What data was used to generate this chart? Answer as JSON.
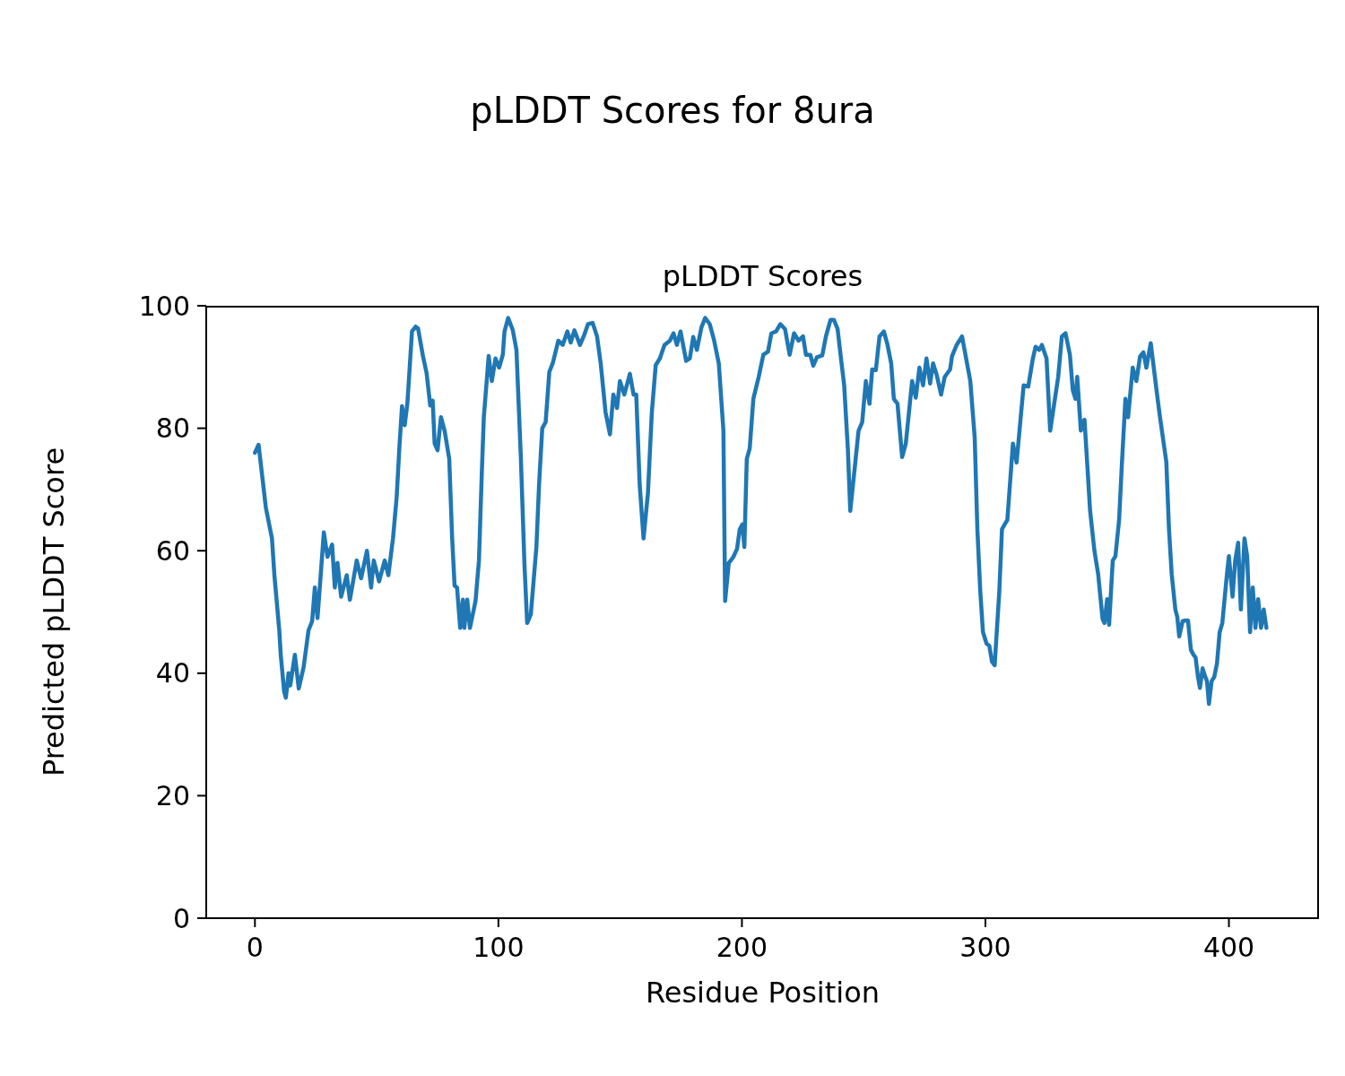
{
  "chart_data": {
    "type": "line",
    "title": "pLDDT Scores for 8ura",
    "subtitle": "pLDDT Scores",
    "xlabel": "Residue Position",
    "ylabel": "Predicted pLDDT Score",
    "xlim": [
      -20,
      437
    ],
    "xticks": [
      0,
      100,
      200,
      300,
      400
    ],
    "ylim": [
      0,
      100
    ],
    "yticks": [
      0,
      20,
      40,
      60,
      80,
      100
    ],
    "marker": "none",
    "line_style": "solid",
    "series": [
      {
        "color": "#1f77b4",
        "x": [
          0,
          1.5,
          4.5,
          7,
          8,
          10,
          10.6,
          12,
          12.7,
          13.8,
          14.5,
          16.4,
          18,
          20,
          22,
          23.5,
          24.6,
          25.7,
          28.3,
          29.8,
          31.7,
          32.8,
          33.9,
          35.4,
          37.7,
          39,
          41.8,
          43.6,
          46,
          47.7,
          48.8,
          51,
          53.3,
          54.8,
          56.7,
          58.2,
          59.3,
          60.4,
          61.5,
          62.6,
          64.5,
          66,
          67,
          69,
          70.5,
          72,
          73,
          73.8,
          75,
          76.4,
          77.9,
          79.8,
          81,
          82,
          83,
          84.3,
          85.4,
          86,
          87.2,
          88.3,
          90.6,
          92,
          93.2,
          94,
          96,
          97.3,
          98.8,
          100.3,
          101.8,
          102.5,
          104,
          105.9,
          107.4,
          109.2,
          110.7,
          111.8,
          113.3,
          115.6,
          116.7,
          118,
          119.4,
          120.9,
          122.3,
          124.6,
          126.4,
          128.3,
          129.7,
          131.2,
          133.5,
          135,
          136.8,
          138.7,
          140.5,
          142,
          144,
          145.8,
          147.2,
          148.7,
          149.9,
          151.7,
          154,
          155.5,
          156.6,
          158,
          159.6,
          161.4,
          163,
          164.6,
          166.3,
          168.2,
          170.4,
          171.9,
          173.3,
          174.8,
          177.1,
          178.6,
          180,
          181.5,
          183.4,
          184.9,
          186.8,
          188.6,
          190.5,
          192.4,
          193.1,
          194.6,
          196.5,
          198,
          199.1,
          200.2,
          201,
          202,
          203.2,
          204.7,
          206.9,
          208.8,
          210.7,
          212.1,
          214,
          215.8,
          217.7,
          219.6,
          221.4,
          223.3,
          225.1,
          226.3,
          228.1,
          229.3,
          230.8,
          233,
          234.5,
          236.4,
          237.8,
          239.3,
          240.8,
          242,
          243.5,
          244.5,
          246.4,
          247.9,
          249.4,
          250.9,
          252.4,
          253.5,
          255,
          256.5,
          258.3,
          259.8,
          261.3,
          262.4,
          263.9,
          265.8,
          267.3,
          269.9,
          271.4,
          272.9,
          274.4,
          275.8,
          277.3,
          278.5,
          280,
          281.8,
          283.3,
          285.5,
          286.3,
          288.2,
          290.4,
          293.8,
          295.6,
          296.7,
          297.9,
          299,
          300.5,
          301.6,
          302.7,
          303.8,
          305.7,
          306.8,
          307.9,
          309,
          311.3,
          312.8,
          315.7,
          317.6,
          319.5,
          320.6,
          322.1,
          323.2,
          325.1,
          326.6,
          329.9,
          331.4,
          332.9,
          334.7,
          335.9,
          337,
          337.7,
          339.2,
          340.7,
          343,
          344.8,
          346.3,
          348.1,
          348.9,
          350,
          350.8,
          352.3,
          353.4,
          354.9,
          356,
          357.5,
          358.6,
          360.5,
          362,
          363.5,
          364.9,
          366.1,
          367.9,
          370.5,
          371.7,
          374.3,
          375.4,
          376.5,
          378,
          378.8,
          379.6,
          381,
          382.1,
          383.2,
          384.4,
          385.5,
          386.3,
          387.3,
          388.1,
          389.2,
          390.3,
          391,
          391.8,
          392.9,
          394,
          395.1,
          396.2,
          397.3,
          399.2,
          400,
          401.5,
          402.6,
          403.8,
          404.9,
          406.4,
          407.5,
          408.7,
          409.8,
          410.9,
          412,
          413.2,
          414.3,
          415.4
        ],
        "values": [
          76,
          77.3,
          67,
          62,
          56,
          47,
          43,
          37,
          36,
          40,
          38,
          43,
          37.5,
          41,
          47,
          48.5,
          54,
          49,
          63,
          59,
          61,
          54,
          58,
          52.5,
          56,
          52,
          58.4,
          55.5,
          60,
          54,
          58.4,
          55,
          58.4,
          56,
          62,
          68.7,
          76.7,
          83.6,
          80.5,
          84,
          95.8,
          96.6,
          96.3,
          91.8,
          89,
          83.7,
          84.5,
          77.5,
          76.4,
          81.8,
          79.6,
          75,
          62,
          54.3,
          54,
          47.4,
          52,
          47.4,
          52,
          47.4,
          51.8,
          58.4,
          73,
          81.8,
          91.8,
          87.7,
          91.4,
          89.9,
          92,
          95.8,
          98,
          96,
          92.8,
          75.3,
          57.7,
          48.2,
          49.6,
          60.6,
          70.9,
          80,
          81,
          89.2,
          90.6,
          94.3,
          93.6,
          95.8,
          94,
          96,
          93.6,
          95,
          97,
          97.2,
          95,
          90.6,
          82.6,
          79,
          85.5,
          83.3,
          87.7,
          85.5,
          88.9,
          85.5,
          85.5,
          70.9,
          62,
          69.4,
          82.6,
          90.3,
          91.4,
          93.6,
          94.3,
          95.5,
          93.6,
          95.8,
          91,
          91.4,
          94.9,
          92.8,
          96.5,
          98,
          97,
          94.3,
          90.6,
          79.6,
          51.8,
          58,
          59,
          60.3,
          63.5,
          64.3,
          60.6,
          75,
          76.7,
          84.8,
          88.4,
          92,
          92.5,
          95.5,
          95.8,
          97,
          96.2,
          92,
          95.5,
          94.3,
          95,
          92,
          92,
          90.2,
          91.6,
          91.9,
          95,
          97.7,
          97.7,
          96.2,
          91,
          87,
          76.7,
          66.5,
          73.8,
          79.6,
          81,
          87.7,
          84,
          89.6,
          89.5,
          95,
          95.8,
          93.6,
          90.6,
          84.8,
          84,
          75.3,
          77.5,
          87.7,
          85,
          89.9,
          87,
          91.4,
          87.3,
          90.6,
          88.7,
          85.5,
          88.4,
          89.6,
          91.8,
          93.6,
          95,
          87.7,
          78.5,
          63.5,
          53.3,
          46.7,
          44.8,
          44.5,
          41.9,
          41.3,
          53.3,
          63.5,
          64.3,
          65,
          77.5,
          74.4,
          87,
          86.8,
          91.4,
          93.3,
          92.8,
          93.6,
          91.4,
          79.6,
          88.4,
          95,
          95.5,
          92,
          86.2,
          84.8,
          88.4,
          79.6,
          81.4,
          66.5,
          59.9,
          56.2,
          48.9,
          48.2,
          52.1,
          47.9,
          58.4,
          59.1,
          65,
          73.8,
          84.8,
          81.8,
          89.9,
          87.7,
          91.7,
          92.4,
          89.9,
          93.9,
          85.5,
          81.8,
          74.5,
          63.5,
          56.2,
          50.4,
          49.2,
          46,
          48.5,
          48.6,
          48.6,
          43.8,
          43,
          42.6,
          39.4,
          37.6,
          40.8,
          39.4,
          38.7,
          35,
          38.7,
          39.4,
          41.6,
          46.7,
          48.2,
          56.2,
          59.1,
          52.5,
          58.4,
          61.3,
          50.4,
          62,
          59.1,
          46.7,
          54,
          47.4,
          52.1,
          47.4,
          50.4,
          47.4
        ]
      }
    ]
  }
}
